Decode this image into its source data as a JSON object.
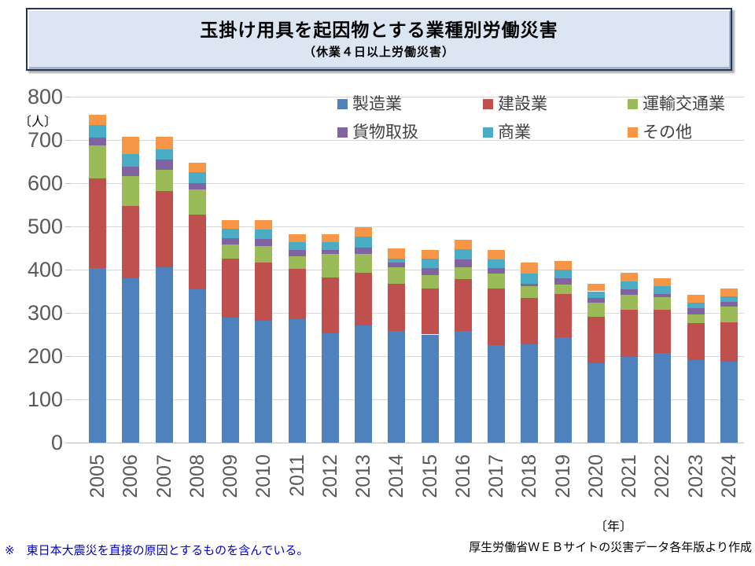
{
  "header": {
    "title": "玉掛け用具を起因物とする業種別労働災害",
    "subtitle": "（休業４日以上労働災害）"
  },
  "chart": {
    "y_unit": "〔人〕",
    "x_unit": "〔年〕"
  },
  "footer": {
    "note": "※　東日本大震災を直接の原因とするものを含んでいる。",
    "source": "厚生労働省ＷＥＢサイトの災害データ各年版より作成"
  },
  "chart_data": {
    "type": "bar",
    "stacked": true,
    "title": "玉掛け用具を起因物とする業種別労働災害（休業４日以上労働災害）",
    "xlabel": "年",
    "ylabel": "人",
    "ylim": [
      0,
      800
    ],
    "ytick_step": 100,
    "grid": "horizontal",
    "legend_position": "top-inside",
    "categories": [
      "2005",
      "2006",
      "2007",
      "2008",
      "2009",
      "2010",
      "2011",
      "2012",
      "2013",
      "2014",
      "2015",
      "2016",
      "2017",
      "2018",
      "2019",
      "2020",
      "2021",
      "2022",
      "2023",
      "2024"
    ],
    "series": [
      {
        "name": "製造業",
        "color": "#4f81bd",
        "values": [
          404,
          380,
          405,
          355,
          290,
          281,
          285,
          252,
          271,
          258,
          250,
          258,
          225,
          228,
          243,
          184,
          199,
          208,
          191,
          187
        ]
      },
      {
        "name": "建設業",
        "color": "#c0504d",
        "values": [
          207,
          168,
          176,
          173,
          135,
          136,
          117,
          130,
          122,
          110,
          106,
          121,
          131,
          106,
          100,
          107,
          109,
          99,
          86,
          91
        ]
      },
      {
        "name": "運輸交通業",
        "color": "#9bbb59",
        "values": [
          76,
          68,
          50,
          58,
          33,
          38,
          29,
          54,
          43,
          38,
          32,
          27,
          35,
          27,
          23,
          33,
          34,
          29,
          20,
          36
        ]
      },
      {
        "name": "貨物取扱",
        "color": "#8064a2",
        "values": [
          18,
          23,
          23,
          14,
          15,
          16,
          15,
          9,
          15,
          11,
          16,
          17,
          12,
          7,
          14,
          11,
          13,
          8,
          14,
          11
        ]
      },
      {
        "name": "商業",
        "color": "#4bacc6",
        "values": [
          29,
          29,
          25,
          25,
          21,
          22,
          18,
          18,
          26,
          9,
          21,
          24,
          20,
          23,
          20,
          15,
          17,
          18,
          13,
          13
        ]
      },
      {
        "name": "その他",
        "color": "#f79646",
        "values": [
          24,
          40,
          29,
          22,
          21,
          21,
          17,
          19,
          21,
          23,
          21,
          22,
          22,
          25,
          20,
          18,
          21,
          18,
          17,
          18
        ]
      }
    ]
  }
}
